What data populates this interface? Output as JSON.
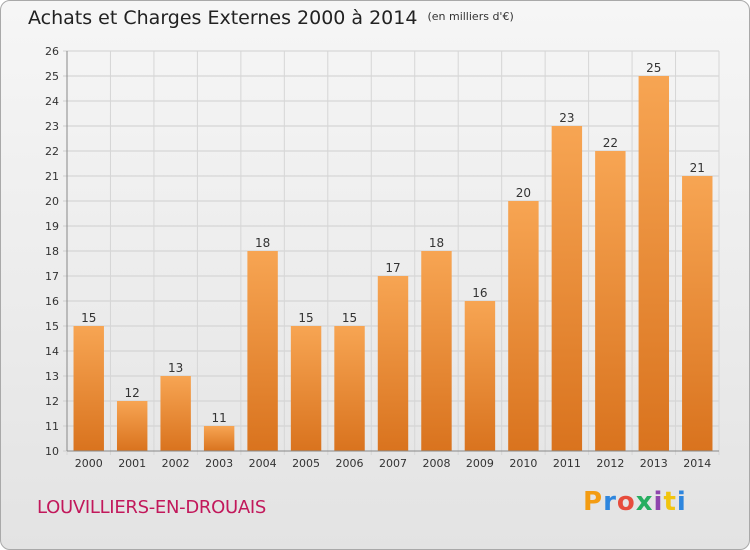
{
  "title": "Achats et Charges Externes 2000 à 2014",
  "subtitle": "(en milliers d'€)",
  "commune": "LOUVILLIERS-EN-DROUAIS",
  "logo": {
    "text": "Proxiti",
    "colors": [
      "#f39c12",
      "#2e86de",
      "#e74c3c",
      "#27ae60",
      "#8e44ad",
      "#f1c40f",
      "#2e86de"
    ]
  },
  "colors": {
    "bar_top": "#f7a553",
    "bar_bottom": "#d9731e",
    "commune": "#c2185b"
  },
  "chart_data": {
    "type": "bar",
    "categories": [
      "2000",
      "2001",
      "2002",
      "2003",
      "2004",
      "2005",
      "2006",
      "2007",
      "2008",
      "2009",
      "2010",
      "2011",
      "2012",
      "2013",
      "2014"
    ],
    "values": [
      15,
      12,
      13,
      11,
      18,
      15,
      15,
      17,
      18,
      16,
      20,
      23,
      22,
      25,
      21
    ],
    "ylim": [
      10,
      26
    ],
    "yticks": [
      10,
      11,
      12,
      13,
      14,
      15,
      16,
      17,
      18,
      19,
      20,
      21,
      22,
      23,
      24,
      25,
      26
    ],
    "grid": true,
    "title": "Achats et Charges Externes 2000 à 2014",
    "subtitle": "(en milliers d'€)"
  }
}
